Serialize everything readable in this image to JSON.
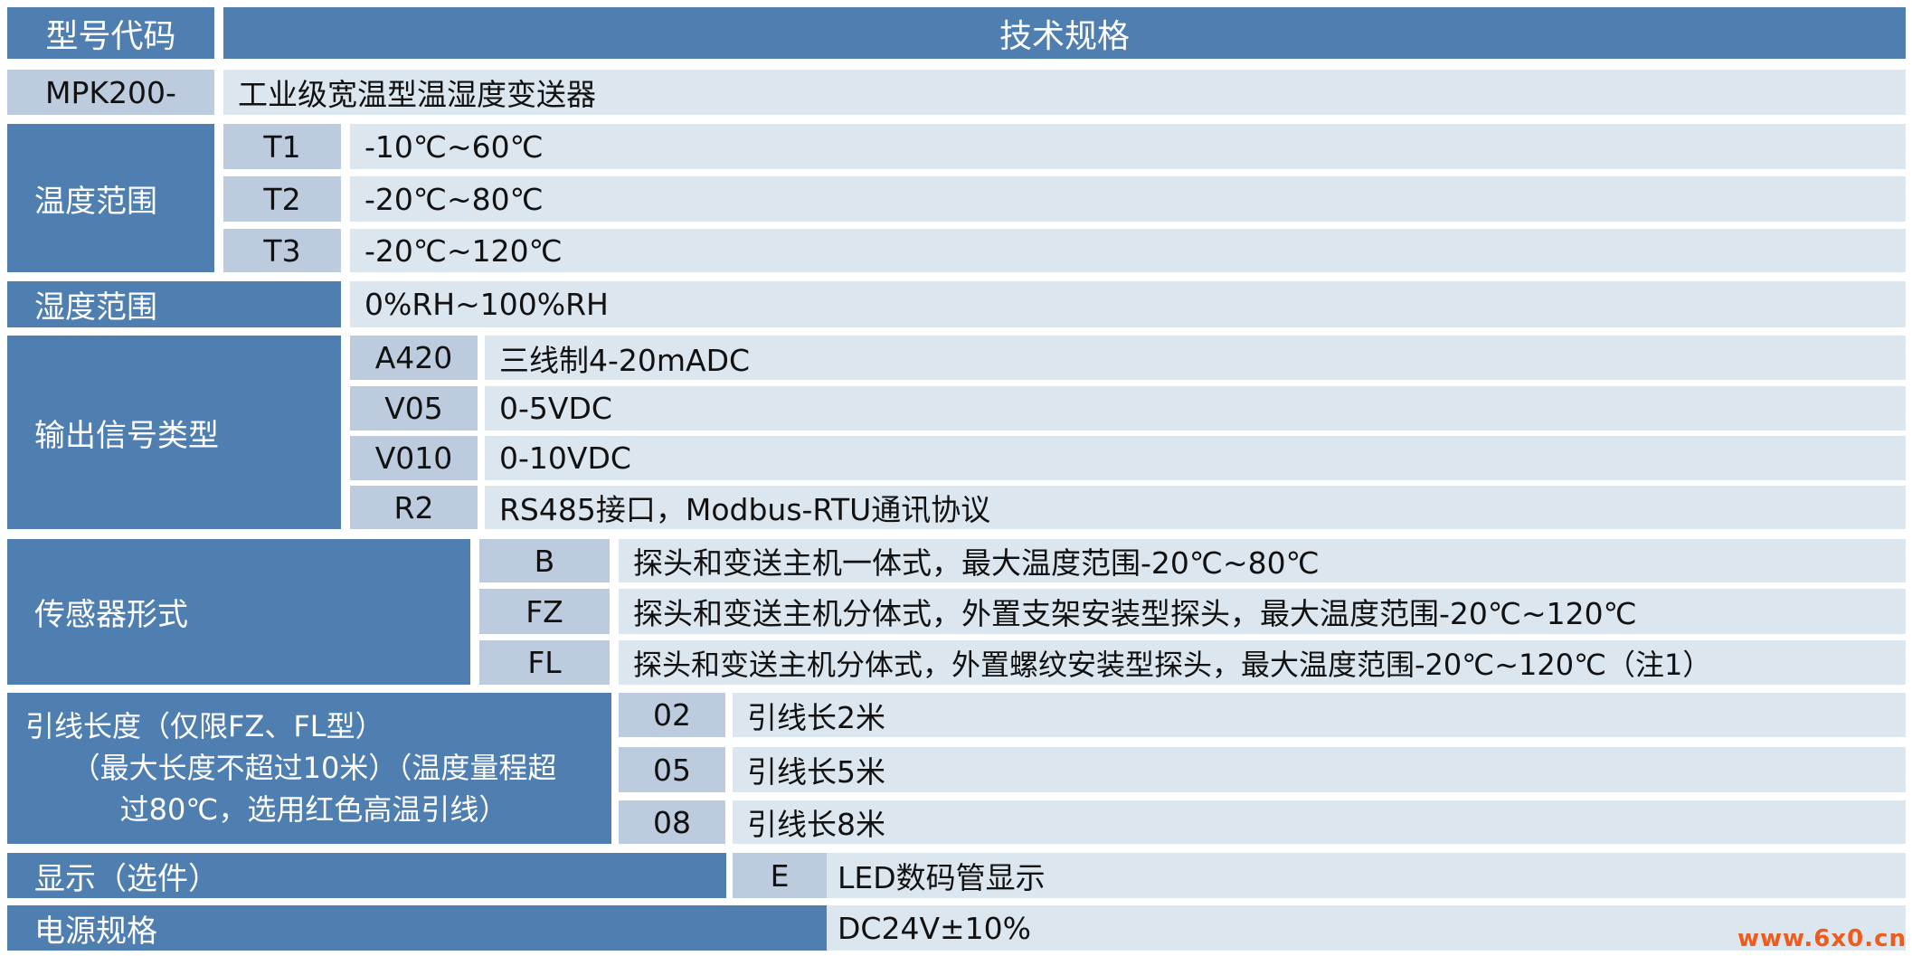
{
  "header": {
    "model_code": "型号代码",
    "spec": "技术规格"
  },
  "model": {
    "code": "MPK200-",
    "desc": "工业级宽温型温湿度变送器"
  },
  "temp_range": {
    "label": "温度范围",
    "options": [
      {
        "code": "T1",
        "desc": "-10℃~60℃"
      },
      {
        "code": "T2",
        "desc": "-20℃~80℃"
      },
      {
        "code": "T3",
        "desc": "-20℃~120℃"
      }
    ]
  },
  "humidity_range": {
    "label": "湿度范围",
    "desc": "0%RH~100%RH"
  },
  "output_signal": {
    "label": "输出信号类型",
    "options": [
      {
        "code": "A420",
        "desc": "三线制4-20mADC"
      },
      {
        "code": "V05",
        "desc": "0-5VDC"
      },
      {
        "code": "V010",
        "desc": "0-10VDC"
      },
      {
        "code": "R2",
        "desc": "RS485接口，Modbus-RTU通讯协议"
      }
    ]
  },
  "sensor_form": {
    "label": "传感器形式",
    "options": [
      {
        "code": "B",
        "desc": "探头和变送主机一体式，最大温度范围-20℃~80℃"
      },
      {
        "code": "FZ",
        "desc": "探头和变送主机分体式，外置支架安装型探头，最大温度范围-20℃~120℃"
      },
      {
        "code": "FL",
        "desc": "探头和变送主机分体式，外置螺纹安装型探头，最大温度范围-20℃~120℃（注1）"
      }
    ]
  },
  "lead_length": {
    "label_lines": [
      "引线长度（仅限FZ、FL型）",
      "（最大长度不超过10米）（温度量程超",
      "过80℃，选用红色高温引线）"
    ],
    "options": [
      {
        "code": "02",
        "desc": "引线长2米"
      },
      {
        "code": "05",
        "desc": "引线长5米"
      },
      {
        "code": "08",
        "desc": "引线长8米"
      }
    ]
  },
  "display": {
    "label": "显示（选件）",
    "code": "E",
    "desc": "LED数码管显示"
  },
  "power": {
    "label": "电源规格",
    "desc": "DC24V±10%"
  },
  "watermark": "www.6x0.cn"
}
